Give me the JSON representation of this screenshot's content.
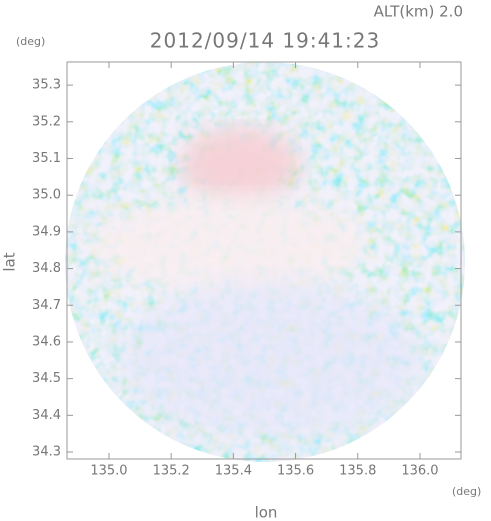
{
  "chart_data": {
    "type": "map",
    "title": "2012/09/14 19:41:23",
    "subtitle": "ALT(km) 2.0",
    "x_label": "lon",
    "x_unit": "(deg)",
    "y_label": "lat",
    "y_unit": "(deg)",
    "xlim": [
      134.865,
      136.132
    ],
    "xticks": [
      {
        "value": 135,
        "label": "135.0"
      },
      135.2,
      135.4,
      135.6,
      135.8,
      {
        "value": 136,
        "label": "136.0"
      }
    ],
    "ylim": [
      34.281,
      35.363
    ],
    "yticks": [
      34.3,
      34.4,
      34.5,
      34.6,
      34.7,
      34.8,
      34.9,
      {
        "value": 35,
        "label": "35.0"
      },
      35.1,
      35.2,
      35.3
    ],
    "frame_color": "#999999"
  }
}
